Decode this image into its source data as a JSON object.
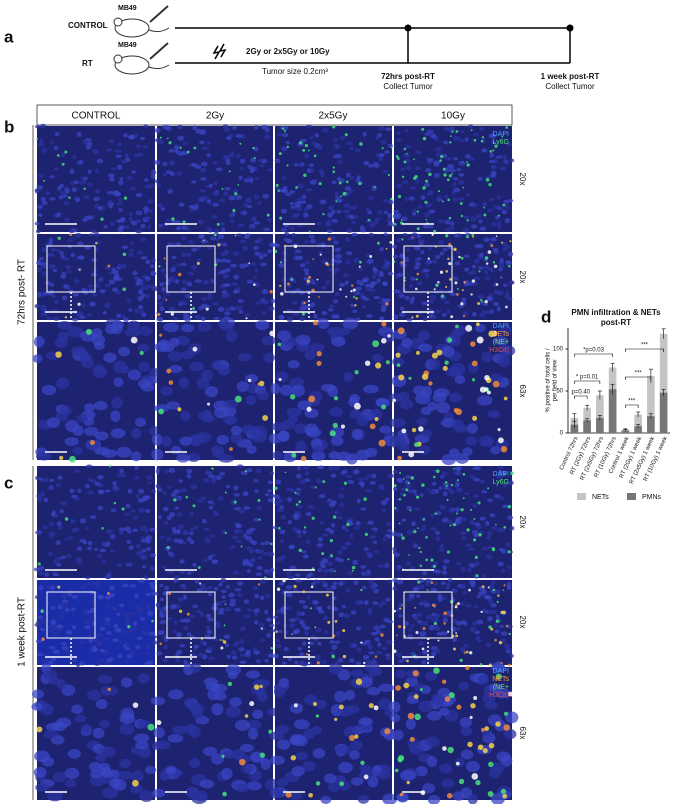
{
  "timeline": {
    "label": "a",
    "groups": [
      "CONTROL",
      "RT"
    ],
    "model": [
      "MB49",
      "MB49"
    ],
    "dose": "2Gy or 2x5Gy or 10Gy",
    "tumor_size": "Tumor size 0.2cm³",
    "points": [
      {
        "title": "72hrs post-RT",
        "action": "Collect Tumor"
      },
      {
        "title": "1 week post-RT",
        "action": "Collect Tumor"
      }
    ]
  },
  "panel_b": {
    "label": "b",
    "columns": [
      "CONTROL",
      "2Gy",
      "2x5Gy",
      "10Gy"
    ],
    "side_label": "72hrs post- RT",
    "magnifications": [
      "20x",
      "20x",
      "63x"
    ],
    "stain_top": [
      "DAPI",
      "Ly6G"
    ],
    "stain_mid": [
      "DAPI",
      "NETs",
      "(NE+",
      "H3Cit)"
    ]
  },
  "panel_c": {
    "label": "c",
    "side_label": "1 week post-RT",
    "magnifications": [
      "20x",
      "20x",
      "63x"
    ],
    "stain_top": [
      "DAPI",
      "Ly6G"
    ],
    "stain_mid": [
      "DAPI",
      "NETs",
      "(NE+",
      "H3Cit)"
    ]
  },
  "chart_data": {
    "type": "bar",
    "label": "d",
    "title": [
      "PMN infiltration & NETs",
      "post-RT"
    ],
    "y_label": [
      "% positive of total cells /",
      "per field of view"
    ],
    "categories": [
      "Control 72hrs",
      "RT (2Gy) 72hrs",
      "RT (2x5Gy) 72hrs",
      "RT (10Gy) 72hrs",
      "Control 1 week",
      "RT (2Gy) 1 week",
      "RT (2x5Gy) 1 week",
      "RT (10Gy) 1 week"
    ],
    "series": [
      {
        "name": "NETs",
        "color": "#c4c4c4",
        "values": [
          18,
          30,
          45,
          78,
          4,
          22,
          68,
          118
        ],
        "errors": [
          5,
          3,
          5,
          5,
          1,
          3,
          8,
          6
        ]
      },
      {
        "name": "PMNs",
        "color": "#767676",
        "values": [
          10,
          15,
          18,
          52,
          3,
          8,
          20,
          48
        ],
        "errors": [
          4,
          2,
          3,
          6,
          1,
          2,
          3,
          4
        ]
      }
    ],
    "ylim": [
      0,
      125
    ],
    "yticks": [
      0,
      50,
      100
    ],
    "grid": false,
    "annotations": [
      "*p=0.03",
      "* p=0.01",
      "p=0.40",
      "***",
      "***",
      "***"
    ]
  }
}
